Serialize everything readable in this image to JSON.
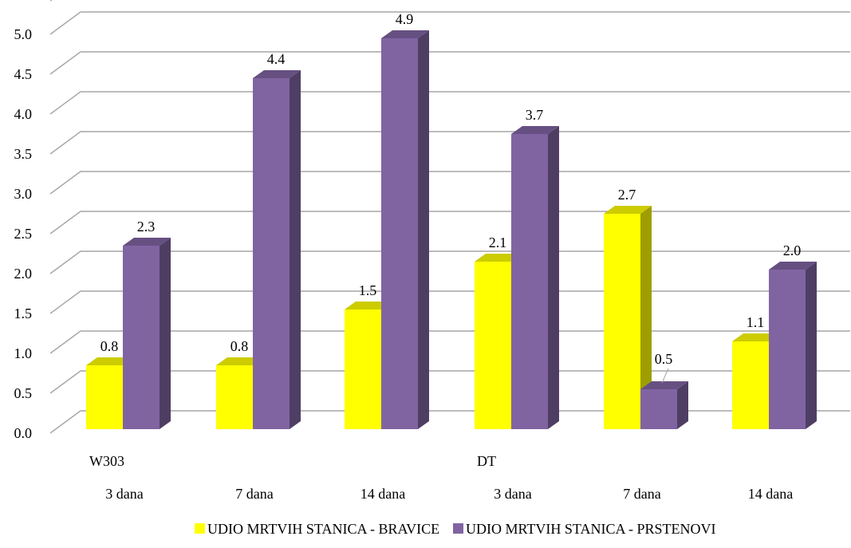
{
  "chart_data": {
    "type": "bar",
    "style": "3d-clustered-column",
    "categories": [
      "3 dana",
      "7 dana",
      "14 dana",
      "3 dana",
      "7 dana",
      "14 dana"
    ],
    "groups": [
      {
        "label": "W303",
        "categories": [
          "3 dana",
          "7 dana",
          "14 dana"
        ]
      },
      {
        "label": "DT",
        "categories": [
          "3 dana",
          "7 dana",
          "14 dana"
        ]
      }
    ],
    "series": [
      {
        "name": "UDIO MRTVIH STANICA - BRAVICE",
        "color": "#ffff00",
        "values": [
          0.8,
          0.8,
          1.5,
          2.1,
          2.7,
          1.1
        ]
      },
      {
        "name": "UDIO MRTVIH STANICA - PRSTENOVI",
        "color": "#8064a2",
        "values": [
          2.3,
          4.4,
          4.9,
          3.7,
          0.5,
          2.0
        ]
      }
    ],
    "data_labels": [
      [
        "0.8",
        "0.8",
        "1.5",
        "2.1",
        "2.7",
        "1.1"
      ],
      [
        "2.3",
        "4.4",
        "4.9",
        "3.7",
        "0.5",
        "2.0"
      ]
    ],
    "y_ticks": [
      "0.0",
      "0.5",
      "1.0",
      "1.5",
      "2.0",
      "2.5",
      "3.0",
      "3.5",
      "4.0",
      "4.5",
      "5.0"
    ],
    "ylim": [
      0,
      5.2
    ],
    "title": "",
    "xlabel": "",
    "ylabel": "",
    "grid": true,
    "legend_position": "bottom"
  }
}
